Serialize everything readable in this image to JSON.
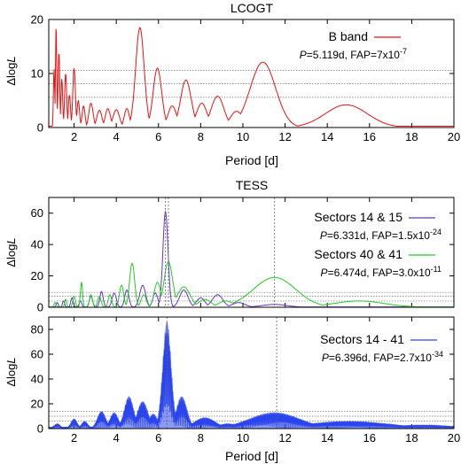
{
  "chart_data": [
    {
      "type": "line",
      "title": "LCOGT",
      "xlabel": "Period [d]",
      "ylabel": "ΔlogL",
      "xlim": [
        0.8,
        20
      ],
      "ylim": [
        0,
        20
      ],
      "xticks": [
        2,
        4,
        6,
        8,
        10,
        12,
        14,
        16,
        18,
        20
      ],
      "yticks": [
        0,
        10,
        20
      ],
      "fap_levels": [
        5.6,
        8.1,
        10.6
      ],
      "legend_position": "top-right",
      "series": [
        {
          "name": "B band",
          "info_pre": "P",
          "info": "=5.119d, FAP=7x10",
          "info_exp": "-7",
          "color": "#ee1111",
          "peaks": [
            {
              "p": 1.05,
              "h": 11,
              "w": 0.03
            },
            {
              "p": 1.15,
              "h": 19,
              "w": 0.03
            },
            {
              "p": 1.28,
              "h": 14,
              "w": 0.04
            },
            {
              "p": 1.42,
              "h": 9,
              "w": 0.04
            },
            {
              "p": 1.6,
              "h": 10,
              "w": 0.05
            },
            {
              "p": 1.78,
              "h": 6,
              "w": 0.05
            },
            {
              "p": 2.0,
              "h": 11,
              "w": 0.06
            },
            {
              "p": 2.2,
              "h": 5,
              "w": 0.06
            },
            {
              "p": 2.45,
              "h": 4,
              "w": 0.07
            },
            {
              "p": 2.8,
              "h": 4.5,
              "w": 0.1
            },
            {
              "p": 3.2,
              "h": 3.2,
              "w": 0.12
            },
            {
              "p": 3.6,
              "h": 3.5,
              "w": 0.12
            },
            {
              "p": 4.0,
              "h": 3.3,
              "w": 0.15
            },
            {
              "p": 4.5,
              "h": 3.5,
              "w": 0.12
            },
            {
              "p": 5.12,
              "h": 18.5,
              "w": 0.2
            },
            {
              "p": 5.95,
              "h": 11,
              "w": 0.2
            },
            {
              "p": 6.65,
              "h": 4,
              "w": 0.2
            },
            {
              "p": 7.3,
              "h": 8.8,
              "w": 0.25
            },
            {
              "p": 8.05,
              "h": 4.5,
              "w": 0.25
            },
            {
              "p": 8.8,
              "h": 5.8,
              "w": 0.3
            },
            {
              "p": 9.7,
              "h": 3,
              "w": 0.3
            },
            {
              "p": 10.95,
              "h": 12.1,
              "w": 0.6
            },
            {
              "p": 14.9,
              "h": 4.2,
              "w": 1.0
            }
          ]
        }
      ]
    },
    {
      "type": "line",
      "title": "TESS",
      "xlabel": "",
      "ylabel": "ΔlogL",
      "xlim": [
        0.8,
        20
      ],
      "ylim": [
        0,
        70
      ],
      "xticks": [
        2,
        4,
        6,
        8,
        10,
        12,
        14,
        16,
        18,
        20
      ],
      "yticks": [
        0,
        20,
        40,
        60
      ],
      "fap_levels": [
        4,
        7,
        9.5
      ],
      "vlines": [
        6.33,
        6.47,
        11.5
      ],
      "legend_position": "top-right",
      "series": [
        {
          "name": "Sectors 14 & 15",
          "info_pre": "P",
          "info": "=6.331d, FAP=1.5x10",
          "info_exp": "-24",
          "color": "#6633cc",
          "peaks": [
            {
              "p": 1.2,
              "h": 3,
              "w": 0.05
            },
            {
              "p": 1.5,
              "h": 4,
              "w": 0.05
            },
            {
              "p": 1.9,
              "h": 6,
              "w": 0.06
            },
            {
              "p": 2.3,
              "h": 4,
              "w": 0.06
            },
            {
              "p": 2.8,
              "h": 7,
              "w": 0.08
            },
            {
              "p": 3.3,
              "h": 10,
              "w": 0.08
            },
            {
              "p": 3.9,
              "h": 9,
              "w": 0.1
            },
            {
              "p": 4.5,
              "h": 11,
              "w": 0.1
            },
            {
              "p": 5.25,
              "h": 14,
              "w": 0.14
            },
            {
              "p": 5.85,
              "h": 9,
              "w": 0.12
            },
            {
              "p": 6.33,
              "h": 61,
              "w": 0.12
            },
            {
              "p": 7.2,
              "h": 11,
              "w": 0.2
            },
            {
              "p": 8.0,
              "h": 6,
              "w": 0.2
            },
            {
              "p": 8.8,
              "h": 8,
              "w": 0.25
            },
            {
              "p": 9.8,
              "h": 3,
              "w": 0.3
            },
            {
              "p": 11.5,
              "h": 1.8,
              "w": 0.6
            }
          ]
        },
        {
          "name": "Sectors 40 & 41",
          "info_pre": "P",
          "info": "=6.474d, FAP=3.0x10",
          "info_exp": "-11",
          "color": "#22cc22",
          "peaks": [
            {
              "p": 1.1,
              "h": 3,
              "w": 0.05
            },
            {
              "p": 1.6,
              "h": 5,
              "w": 0.05
            },
            {
              "p": 2.0,
              "h": 7,
              "w": 0.06
            },
            {
              "p": 2.35,
              "h": 16,
              "w": 0.05
            },
            {
              "p": 2.8,
              "h": 8,
              "w": 0.07
            },
            {
              "p": 3.2,
              "h": 7,
              "w": 0.08
            },
            {
              "p": 3.7,
              "h": 8,
              "w": 0.08
            },
            {
              "p": 4.25,
              "h": 14,
              "w": 0.1
            },
            {
              "p": 4.75,
              "h": 28,
              "w": 0.12
            },
            {
              "p": 5.3,
              "h": 8,
              "w": 0.12
            },
            {
              "p": 5.95,
              "h": 16,
              "w": 0.15
            },
            {
              "p": 6.47,
              "h": 29,
              "w": 0.2
            },
            {
              "p": 7.2,
              "h": 13,
              "w": 0.3
            },
            {
              "p": 8.2,
              "h": 5,
              "w": 0.3
            },
            {
              "p": 9.2,
              "h": 4,
              "w": 0.35
            },
            {
              "p": 11.5,
              "h": 19,
              "w": 1.0
            },
            {
              "p": 15.5,
              "h": 4,
              "w": 1.2
            }
          ]
        }
      ]
    },
    {
      "type": "line",
      "title": "",
      "xlabel": "Period [d]",
      "ylabel": "ΔlogL",
      "xlim": [
        0.8,
        20
      ],
      "ylim": [
        0,
        90
      ],
      "xticks": [
        2,
        4,
        6,
        8,
        10,
        12,
        14,
        16,
        18,
        20
      ],
      "yticks": [
        0,
        20,
        40,
        60,
        80
      ],
      "fap_levels": [
        6,
        10,
        14
      ],
      "vlines": [
        6.4,
        11.6
      ],
      "legend_position": "top-right",
      "series": [
        {
          "name": "Sectors 14 - 41",
          "info_pre": "P",
          "info": "=6.396d, FAP=2.7x10",
          "info_exp": "-34",
          "color": "#2b45ee",
          "envelope_peaks": [
            {
              "p": 1.2,
              "h": 4,
              "w": 0.15
            },
            {
              "p": 2.0,
              "h": 8,
              "w": 0.15
            },
            {
              "p": 2.5,
              "h": 6,
              "w": 0.15
            },
            {
              "p": 3.3,
              "h": 14,
              "w": 0.2
            },
            {
              "p": 3.9,
              "h": 13,
              "w": 0.2
            },
            {
              "p": 4.6,
              "h": 26,
              "w": 0.22
            },
            {
              "p": 5.25,
              "h": 22,
              "w": 0.25
            },
            {
              "p": 5.75,
              "h": 12,
              "w": 0.2
            },
            {
              "p": 6.4,
              "h": 86,
              "w": 0.2
            },
            {
              "p": 7.1,
              "h": 26,
              "w": 0.25
            },
            {
              "p": 8.2,
              "h": 9,
              "w": 0.5
            },
            {
              "p": 9.3,
              "h": 4,
              "w": 0.5
            },
            {
              "p": 11.5,
              "h": 13,
              "w": 1.2
            },
            {
              "p": 15.0,
              "h": 6,
              "w": 2.0
            },
            {
              "p": 18.5,
              "h": 3,
              "w": 1.5
            }
          ]
        }
      ]
    }
  ]
}
